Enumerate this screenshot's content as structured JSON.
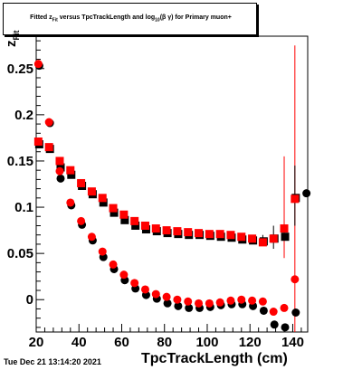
{
  "chart_data": {
    "type": "scatter",
    "title": "Fitted z_Fit versus TpcTrackLength and log10(β γ) for Primary muon+",
    "xlabel": "TpcTrackLength (cm)",
    "ylabel": "z_Fit",
    "xlim": [
      20,
      147
    ],
    "ylim": [
      -0.035,
      0.285
    ],
    "xticks": [
      20,
      40,
      60,
      80,
      100,
      120,
      140
    ],
    "yticks": [
      0,
      0.05,
      0.1,
      0.15,
      0.2,
      0.25
    ],
    "ytick_labels": [
      "0",
      "0.05",
      "0.1",
      "0.15",
      "0.2",
      "0.25"
    ],
    "grid": false,
    "series": [
      {
        "marker": "square",
        "color": "#000000",
        "x": [
          21,
          26,
          31,
          36,
          41,
          46,
          51,
          56,
          61,
          66,
          71,
          76,
          81,
          86,
          91,
          96,
          101,
          106,
          111,
          116,
          121,
          126,
          131,
          136,
          141
        ],
        "y": [
          0.17,
          0.165,
          0.145,
          0.137,
          0.125,
          0.116,
          0.107,
          0.096,
          0.088,
          0.082,
          0.078,
          0.076,
          0.074,
          0.073,
          0.072,
          0.072,
          0.071,
          0.07,
          0.069,
          0.067,
          0.066,
          0.065,
          0.068,
          0.07,
          0.112
        ]
      },
      {
        "marker": "square",
        "color": "#ff0000",
        "x": [
          21,
          26,
          31,
          36,
          41,
          46,
          51,
          56,
          61,
          66,
          71,
          76,
          81,
          86,
          91,
          96,
          101,
          106,
          111,
          116,
          121,
          126,
          131,
          136,
          141
        ],
        "y": [
          0.171,
          0.165,
          0.15,
          0.14,
          0.126,
          0.117,
          0.11,
          0.099,
          0.092,
          0.085,
          0.08,
          0.077,
          0.075,
          0.074,
          0.073,
          0.072,
          0.071,
          0.071,
          0.07,
          0.068,
          0.066,
          0.062,
          0.066,
          0.077,
          0.109
        ]
      },
      {
        "marker": "circle",
        "color": "#000000",
        "x": [
          21,
          26,
          31,
          36,
          41,
          46,
          51,
          56,
          61,
          66,
          71,
          76,
          81,
          86,
          91,
          96,
          101,
          106,
          111,
          116,
          121,
          126,
          131,
          136,
          141,
          146
        ],
        "y": [
          0.255,
          0.193,
          0.133,
          0.104,
          0.083,
          0.066,
          0.048,
          0.035,
          0.023,
          0.014,
          0.007,
          0.003,
          -0.002,
          -0.005,
          -0.007,
          -0.007,
          -0.006,
          -0.004,
          -0.003,
          -0.003,
          -0.005,
          -0.01,
          -0.025,
          -0.028,
          -0.012,
          0.117
        ]
      },
      {
        "marker": "circle",
        "color": "#ff0000",
        "x": [
          21,
          26,
          31,
          36,
          41,
          46,
          51,
          56,
          61,
          66,
          71,
          76,
          81,
          86,
          91,
          96,
          101,
          106,
          111,
          116,
          121,
          126,
          131,
          136,
          141
        ],
        "y": [
          0.255,
          0.192,
          0.139,
          0.105,
          0.085,
          0.068,
          0.052,
          0.038,
          0.027,
          0.018,
          0.011,
          0.006,
          0.003,
          0.0,
          -0.002,
          -0.004,
          -0.004,
          -0.003,
          -0.001,
          -0.0,
          -0.001,
          -0.002,
          -0.013,
          -0.009,
          0.022
        ]
      }
    ],
    "error_bars": [
      {
        "color": "#ff0000",
        "x": 141,
        "low": -0.035,
        "high": 0.275
      },
      {
        "color": "#ff0000",
        "x": 136,
        "low": 0.045,
        "high": 0.155
      },
      {
        "color": "#000000",
        "x": 131,
        "low": 0.055,
        "high": 0.08
      },
      {
        "color": "#000000",
        "x": 141,
        "low": 0.08,
        "high": 0.145
      },
      {
        "color": "#000000",
        "x": 126,
        "low": 0.06,
        "high": 0.07
      }
    ]
  },
  "header": {
    "title_parts": {
      "pre": "Fitted  z",
      "sub1": "Fit",
      "mid": "  versus  TpcTrackLength  and  log",
      "sub2": "10",
      "post": "(β γ)  for  Primary  muon+"
    }
  },
  "footer": {
    "datestamp": "Tue Dec 21 13:14:20 2021"
  },
  "axes": {
    "ylabel_main": "z",
    "ylabel_sub": "Fit",
    "xlabel": "TpcTrackLength (cm)"
  }
}
